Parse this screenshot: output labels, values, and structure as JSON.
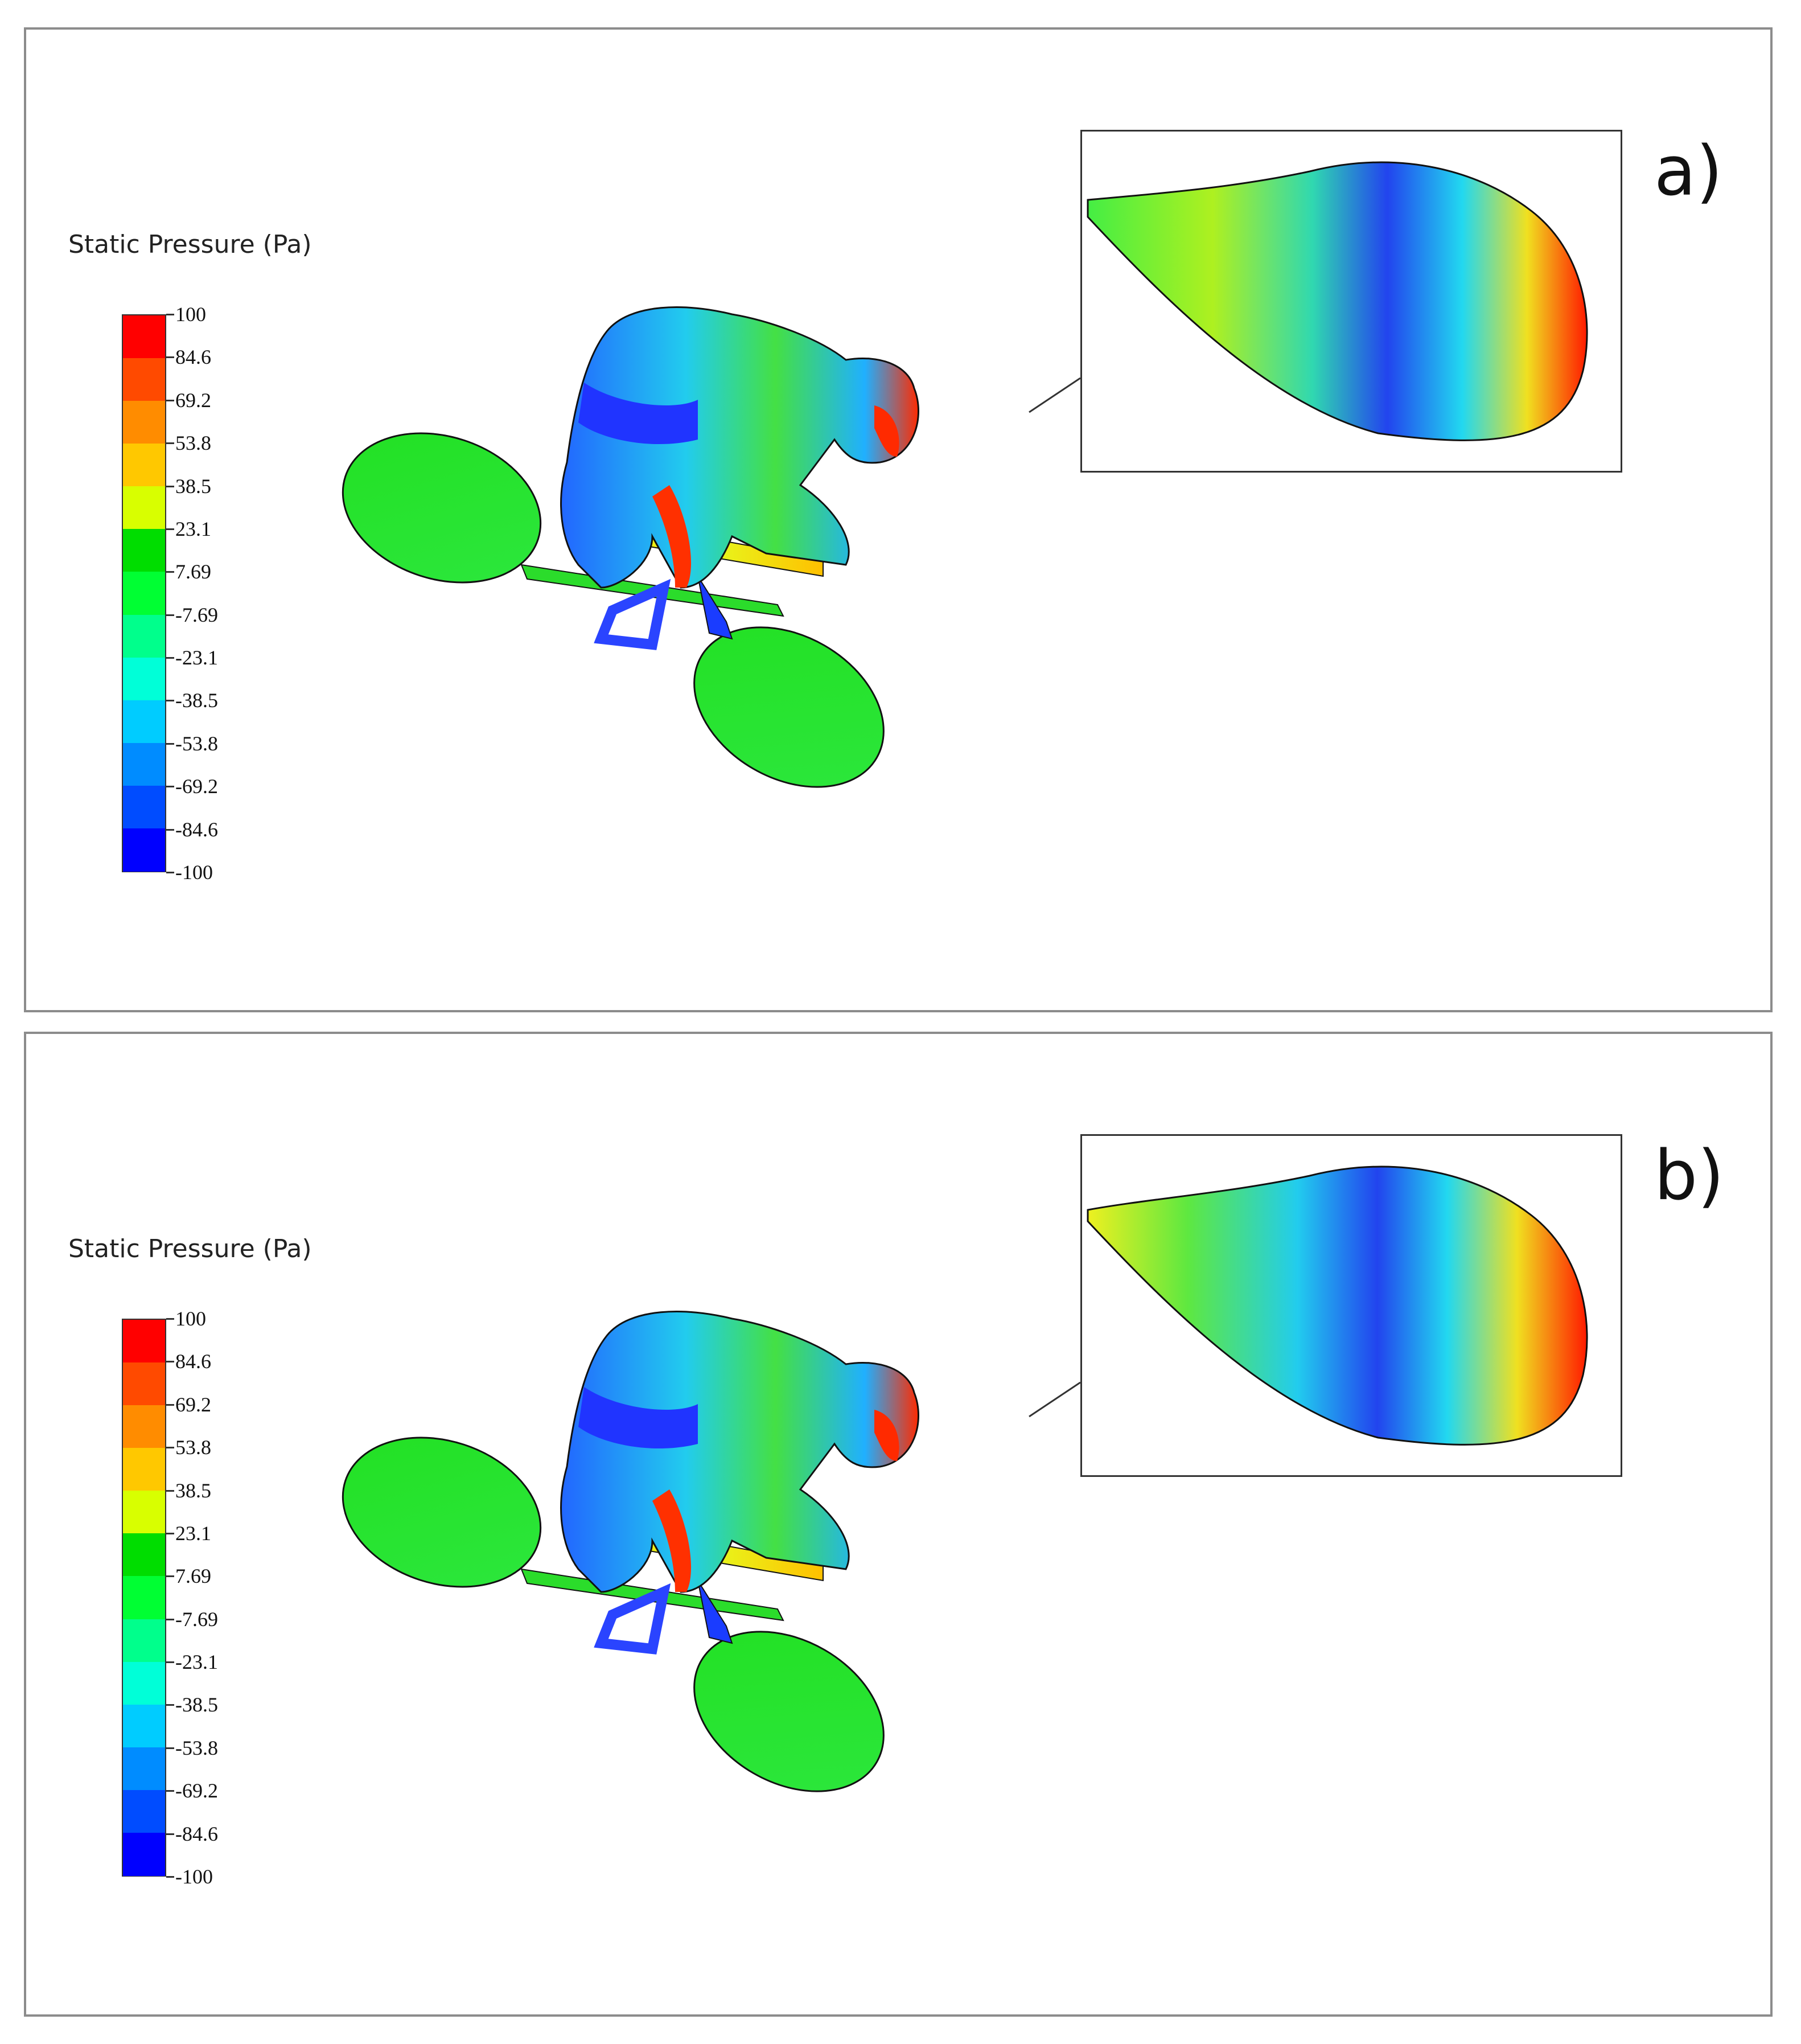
{
  "figure": {
    "panels": [
      {
        "label": "a)",
        "legend": {
          "title": "Static Pressure (Pa)",
          "ticks": [
            "100",
            "84.6",
            "69.2",
            "53.8",
            "38.5",
            "23.1",
            "7.69",
            "-7.69",
            "-23.1",
            "-38.5",
            "-53.8",
            "-69.2",
            "-84.6",
            "-100"
          ]
        }
      },
      {
        "label": "b)",
        "legend": {
          "title": "Static Pressure (Pa)",
          "ticks": [
            "100",
            "84.6",
            "69.2",
            "53.8",
            "38.5",
            "23.1",
            "7.69",
            "-7.69",
            "-23.1",
            "-38.5",
            "-53.8",
            "-69.2",
            "-84.6",
            "-100"
          ]
        }
      }
    ],
    "colormap": [
      "#ff0000",
      "#ff4a00",
      "#ff8c00",
      "#ffc800",
      "#d8ff00",
      "#00dd00",
      "#00ff33",
      "#00ff8c",
      "#00ffd8",
      "#00ccff",
      "#008cff",
      "#004cff",
      "#0000ff"
    ]
  }
}
